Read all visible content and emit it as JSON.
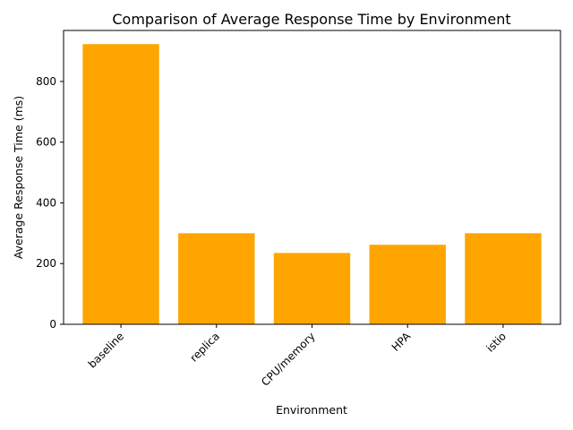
{
  "chart_data": {
    "type": "bar",
    "title": "Comparison of Average Response Time by Environment",
    "xlabel": "Environment",
    "ylabel": "Average Response Time (ms)",
    "categories": [
      "baseline",
      "replica",
      "CPU/memory",
      "HPA",
      "istio"
    ],
    "values": [
      923,
      300,
      235,
      262,
      300
    ],
    "ylim": [
      0,
      968
    ],
    "yticks": [
      0,
      200,
      400,
      600,
      800
    ],
    "ytick_labels": [
      "0",
      "200",
      "400",
      "600",
      "800"
    ],
    "bar_color": "#ffa500",
    "grid": false,
    "legend": "none"
  }
}
